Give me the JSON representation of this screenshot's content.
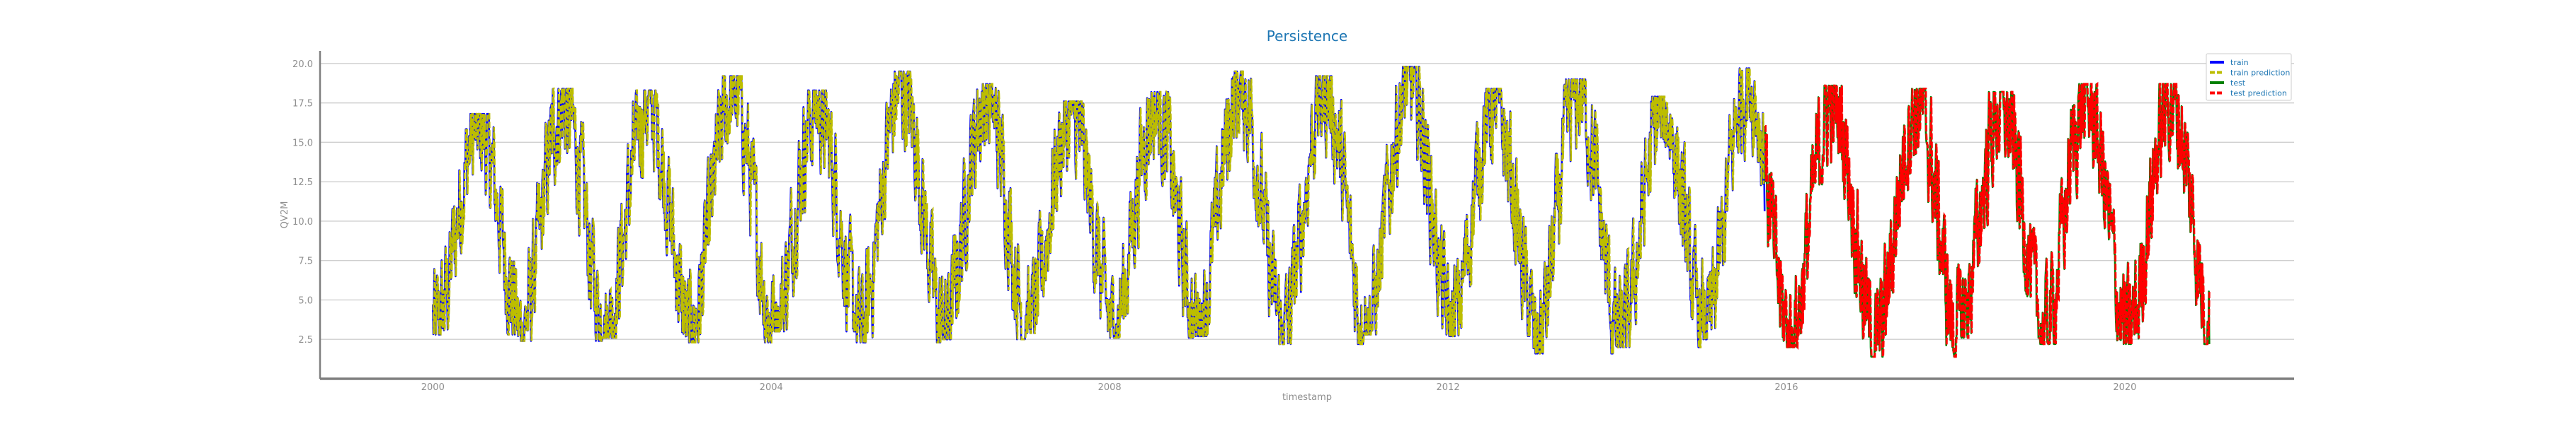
{
  "chart_data": {
    "type": "line",
    "title": "Persistence",
    "xlabel": "timestamp",
    "ylabel": "QV2M",
    "xlim": [
      "1998-09-01",
      "2022-01-01"
    ],
    "ylim": [
      0,
      20.8
    ],
    "yticks": [
      2.5,
      5.0,
      7.5,
      10.0,
      12.5,
      15.0,
      17.5,
      20.0
    ],
    "ytick_labels": [
      "2.5",
      "5.0",
      "7.5",
      "10.0",
      "12.5",
      "15.0",
      "17.5",
      "20.0"
    ],
    "xticks": [
      "2000-01-01",
      "2004-01-01",
      "2008-01-01",
      "2012-01-01",
      "2016-01-01",
      "2020-01-01"
    ],
    "xtick_labels": [
      "2000",
      "2004",
      "2008",
      "2012",
      "2016",
      "2020"
    ],
    "grid": "horizontal",
    "legend_position": "top-right",
    "series": [
      {
        "name": "train",
        "color": "#0000ff",
        "style": "solid",
        "x_start": "2000-01-01",
        "x_end": "2015-09-30",
        "seasonal_min": [
          2.8,
          2.4,
          2.6,
          2.3,
          3.0,
          2.3,
          2.5,
          2.9,
          2.6,
          2.7,
          2.2,
          2.8,
          2.7,
          1.6,
          2.0,
          2.5
        ],
        "seasonal_max": [
          16.8,
          18.4,
          18.3,
          19.2,
          18.3,
          19.5,
          18.7,
          17.6,
          18.2,
          19.5,
          19.2,
          19.8,
          18.4,
          19.0,
          17.9,
          19.7
        ]
      },
      {
        "name": "train prediction",
        "color": "#bcbd00",
        "style": "dashed",
        "x_start": "2000-01-01",
        "x_end": "2015-09-30"
      },
      {
        "name": "test",
        "color": "#008000",
        "style": "solid",
        "x_start": "2015-10-01",
        "x_end": "2020-12-31",
        "seasonal_min": [
          2.4,
          2.0,
          1.4,
          2.6,
          2.2
        ],
        "seasonal_max": [
          19.0,
          18.6,
          18.4,
          18.2,
          18.7
        ]
      },
      {
        "name": "test prediction",
        "color": "#ff0000",
        "style": "dashed",
        "x_start": "2015-10-01",
        "x_end": "2020-12-31"
      }
    ]
  }
}
